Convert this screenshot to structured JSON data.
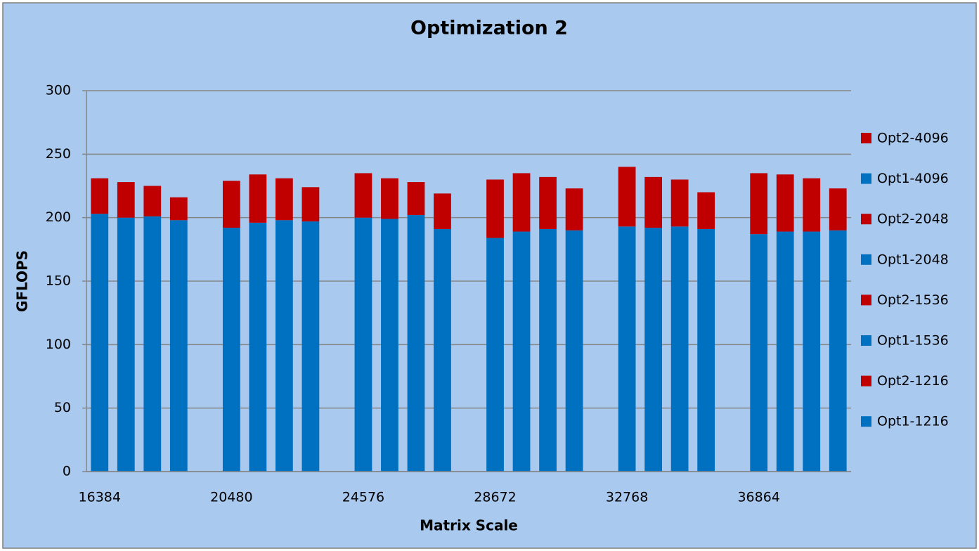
{
  "chart_data": {
    "type": "grouped-stacked-bar",
    "title": "Optimization 2",
    "x_label": "Matrix Scale",
    "y_label": "GFLOPS",
    "categories": [
      "16384",
      "20480",
      "24576",
      "28672",
      "32768",
      "36864"
    ],
    "ylim": [
      0,
      300
    ],
    "yticks": [
      0,
      50,
      100,
      150,
      200,
      250,
      300
    ],
    "grid": true,
    "legend": "right",
    "series": [
      {
        "name": "Opt1-1216",
        "color": "#0070c0",
        "stack": 0,
        "values": [
          203,
          192,
          200,
          184,
          193,
          187
        ]
      },
      {
        "name": "Opt2-1216",
        "color": "#c00000",
        "stack": 0,
        "values": [
          28,
          37,
          35,
          46,
          47,
          48
        ]
      },
      {
        "name": "Opt1-1536",
        "color": "#0070c0",
        "stack": 1,
        "values": [
          200,
          196,
          199,
          189,
          192,
          189
        ]
      },
      {
        "name": "Opt2-1536",
        "color": "#c00000",
        "stack": 1,
        "values": [
          28,
          38,
          32,
          46,
          40,
          45
        ]
      },
      {
        "name": "Opt1-2048",
        "color": "#0070c0",
        "stack": 2,
        "values": [
          201,
          198,
          202,
          191,
          193,
          189
        ]
      },
      {
        "name": "Opt2-2048",
        "color": "#c00000",
        "stack": 2,
        "values": [
          24,
          33,
          26,
          41,
          37,
          42
        ]
      },
      {
        "name": "Opt1-4096",
        "color": "#0070c0",
        "stack": 3,
        "values": [
          198,
          197,
          191,
          190,
          191,
          190
        ]
      },
      {
        "name": "Opt2-4096",
        "color": "#c00000",
        "stack": 3,
        "values": [
          18,
          27,
          28,
          33,
          29,
          33
        ]
      }
    ]
  }
}
